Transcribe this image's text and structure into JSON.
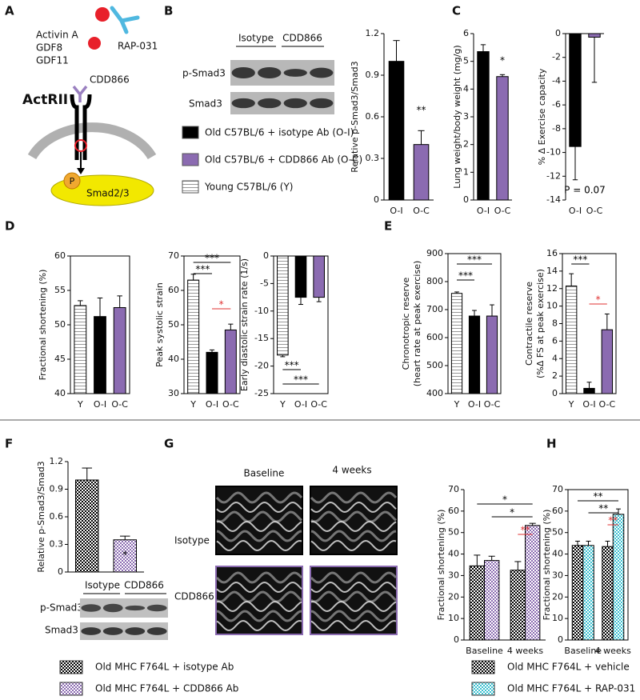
{
  "figure": {
    "panel_labels": [
      "A",
      "B",
      "C",
      "D",
      "E",
      "F",
      "G",
      "H"
    ],
    "diagram": {
      "ligands": [
        "Activin A",
        "GDF8",
        "GDF11"
      ],
      "trap": "RAP-031",
      "antibody": "CDD866",
      "receptor": "ActRII",
      "phospho": "P",
      "effector": "Smad2/3"
    },
    "blot_b": {
      "lanes": [
        "Isotype",
        "CDD866"
      ],
      "rows": [
        "p-Smad3",
        "Smad3"
      ]
    },
    "legend_top": [
      {
        "label": "Old C57BL/6 + isotype Ab (O-I)",
        "color": "#000000",
        "pattern": "solid"
      },
      {
        "label": "Old C57BL/6 + CDD866 Ab (O-C)",
        "color": "#8b6bb1",
        "pattern": "solid"
      },
      {
        "label": "Young C57BL/6 (Y)",
        "color": "#999999",
        "pattern": "stripes"
      }
    ],
    "blot_f": {
      "lanes": [
        "Isotype",
        "CDD866"
      ],
      "rows": [
        "p-Smad3",
        "Smad3"
      ]
    },
    "echo_g": {
      "columns": [
        "Baseline",
        "4 weeks"
      ],
      "rows": [
        "Isotype",
        "CDD866"
      ]
    }
  },
  "chart_data": [
    {
      "type": "bar",
      "ylabel": "Relative p-Smad3/Smad3",
      "categories": [
        "O-I",
        "O-C"
      ],
      "values": [
        1.0,
        0.4
      ],
      "errors": [
        0.15,
        0.1
      ],
      "colors": [
        "#000000",
        "#8b6bb1"
      ],
      "patterns": [
        "solid",
        "solid"
      ],
      "ylim": [
        0,
        1.2
      ],
      "yticks": [
        0,
        0.3,
        0.6,
        0.9,
        1.2
      ],
      "annotations": [
        {
          "text": "**",
          "color": "#000000"
        }
      ]
    },
    {
      "type": "bar",
      "ylabel": "Lung weight/body weight (mg/g)",
      "categories": [
        "O-I",
        "O-C"
      ],
      "values": [
        5.35,
        4.45
      ],
      "errors": [
        0.25,
        0.07
      ],
      "colors": [
        "#000000",
        "#8b6bb1"
      ],
      "patterns": [
        "solid",
        "solid"
      ],
      "ylim": [
        0,
        6
      ],
      "yticks": [
        0,
        1,
        2,
        3,
        4,
        5,
        6
      ],
      "annotations": [
        {
          "text": "*",
          "color": "#000000"
        }
      ]
    },
    {
      "type": "bar",
      "ylabel": "% Δ Exercise capacity",
      "categories": [
        "O-I",
        "O-C"
      ],
      "values": [
        -9.5,
        -0.3
      ],
      "errors": [
        2.8,
        3.8
      ],
      "colors": [
        "#000000",
        "#8b6bb1"
      ],
      "patterns": [
        "solid",
        "solid"
      ],
      "ylim": [
        -14,
        0
      ],
      "yticks": [
        0,
        -2,
        -4,
        -6,
        -8,
        -10,
        -12,
        -14
      ],
      "annotations": [
        {
          "text": "P = 0.07",
          "color": "#000000"
        }
      ]
    },
    {
      "type": "bar",
      "ylabel": "Fractional shortening (%)",
      "categories": [
        "Y",
        "O-I",
        "O-C"
      ],
      "values": [
        52.8,
        51.2,
        52.5
      ],
      "errors": [
        0.7,
        2.7,
        1.7
      ],
      "colors": [
        "#999999",
        "#000000",
        "#8b6bb1"
      ],
      "patterns": [
        "stripes",
        "solid",
        "solid"
      ],
      "ylim": [
        40,
        60
      ],
      "yticks": [
        40,
        45,
        50,
        55,
        60
      ],
      "frame": true,
      "annotations": []
    },
    {
      "type": "bar",
      "ylabel": "Peak systolic strain",
      "categories": [
        "Y",
        "O-I",
        "O-C"
      ],
      "values": [
        63,
        42,
        48.5
      ],
      "errors": [
        1.7,
        0.7,
        1.7
      ],
      "colors": [
        "#999999",
        "#000000",
        "#8b6bb1"
      ],
      "patterns": [
        "stripes",
        "solid",
        "solid"
      ],
      "ylim": [
        30,
        70
      ],
      "yticks": [
        30,
        40,
        50,
        60,
        70
      ],
      "frame": true,
      "annotations": [
        {
          "text": "***",
          "color": "#000000"
        },
        {
          "text": "***",
          "color": "#000000"
        },
        {
          "text": "*",
          "color": "#e03030"
        }
      ]
    },
    {
      "type": "bar",
      "ylabel": "Early diastolic strain rate (1/s)",
      "categories": [
        "Y",
        "O-I",
        "O-C"
      ],
      "values": [
        -18,
        -7.5,
        -7.5
      ],
      "errors": [
        0.3,
        1.3,
        0.8
      ],
      "colors": [
        "#999999",
        "#000000",
        "#8b6bb1"
      ],
      "patterns": [
        "stripes",
        "solid",
        "solid"
      ],
      "ylim": [
        -25,
        0
      ],
      "yticks": [
        0,
        -5,
        -10,
        -15,
        -20,
        -25
      ],
      "frame": true,
      "annotations": [
        {
          "text": "***",
          "color": "#000000"
        },
        {
          "text": "***",
          "color": "#000000"
        }
      ]
    },
    {
      "type": "bar",
      "ylabel": [
        "Chronotropic reserve",
        "(heart rate at peak exercise)"
      ],
      "categories": [
        "Y",
        "O-I",
        "O-C"
      ],
      "values": [
        758,
        677,
        677
      ],
      "errors": [
        5,
        20,
        40
      ],
      "colors": [
        "#999999",
        "#000000",
        "#8b6bb1"
      ],
      "patterns": [
        "stripes",
        "solid",
        "solid"
      ],
      "ylim": [
        400,
        900
      ],
      "yticks": [
        400,
        500,
        600,
        700,
        800,
        900
      ],
      "frame": true,
      "annotations": [
        {
          "text": "***",
          "color": "#000000"
        },
        {
          "text": "***",
          "color": "#000000"
        }
      ]
    },
    {
      "type": "bar",
      "ylabel": [
        "Contractile reserve",
        "(%Δ FS at peak exercise)"
      ],
      "categories": [
        "Y",
        "O-I",
        "O-C"
      ],
      "values": [
        12.3,
        0.6,
        7.3
      ],
      "errors": [
        1.4,
        0.7,
        1.8
      ],
      "colors": [
        "#999999",
        "#000000",
        "#8b6bb1"
      ],
      "patterns": [
        "stripes",
        "solid",
        "solid"
      ],
      "ylim": [
        0,
        16
      ],
      "yticks": [
        0,
        2,
        4,
        6,
        8,
        10,
        12,
        14,
        16
      ],
      "frame": true,
      "annotations": [
        {
          "text": "***",
          "color": "#000000"
        },
        {
          "text": "*",
          "color": "#e03030"
        }
      ]
    },
    {
      "type": "bar",
      "ylabel": "Relative p-Smad3/Smad3",
      "categories": [
        null,
        null
      ],
      "values": [
        1.0,
        0.35
      ],
      "errors": [
        0.13,
        0.04
      ],
      "colors": [
        "#000000",
        "#8b6bb1"
      ],
      "patterns": [
        "checks",
        "checks"
      ],
      "ylim": [
        0,
        1.2
      ],
      "yticks": [
        0,
        0.3,
        0.6,
        0.9,
        1.2
      ],
      "annotations": [
        {
          "text": "*",
          "color": "#000000"
        }
      ]
    },
    {
      "type": "grouped-bar",
      "ylabel": "Fractional shortening (%)",
      "categories": [
        "Baseline",
        "4 weeks"
      ],
      "series": [
        {
          "name": "Old MHC F764L + isotype Ab",
          "color": "#000000",
          "pattern": "checks",
          "values": [
            34.5,
            32.5
          ],
          "errors": [
            5,
            4
          ]
        },
        {
          "name": "Old MHC F764L + CDD866 Ab",
          "color": "#8b6bb1",
          "pattern": "checks",
          "values": [
            37,
            53.3
          ],
          "errors": [
            2,
            1
          ]
        }
      ],
      "ylim": [
        0,
        70
      ],
      "yticks": [
        0,
        10,
        20,
        30,
        40,
        50,
        60,
        70
      ],
      "annotations": [
        {
          "text": "*",
          "color": "#000000"
        },
        {
          "text": "*",
          "color": "#000000"
        },
        {
          "text": "**",
          "color": "#e03030"
        }
      ]
    },
    {
      "type": "grouped-bar",
      "ylabel": "Fractional shortening (%)",
      "categories": [
        "Baseline",
        "4 weeks"
      ],
      "series": [
        {
          "name": "Old MHC F764L + vehicle",
          "color": "#000000",
          "pattern": "checks",
          "values": [
            44,
            43.5
          ],
          "errors": [
            2,
            2.5
          ]
        },
        {
          "name": "Old MHC F764L + RAP-031",
          "color": "#3cc0d0",
          "pattern": "checks",
          "values": [
            44,
            58.5
          ],
          "errors": [
            2,
            2.5
          ]
        }
      ],
      "ylim": [
        0,
        70
      ],
      "yticks": [
        0,
        10,
        20,
        30,
        40,
        50,
        60,
        70
      ],
      "frame": true,
      "annotations": [
        {
          "text": "**",
          "color": "#000000"
        },
        {
          "text": "**",
          "color": "#000000"
        },
        {
          "text": "**",
          "color": "#e03030"
        }
      ]
    }
  ]
}
